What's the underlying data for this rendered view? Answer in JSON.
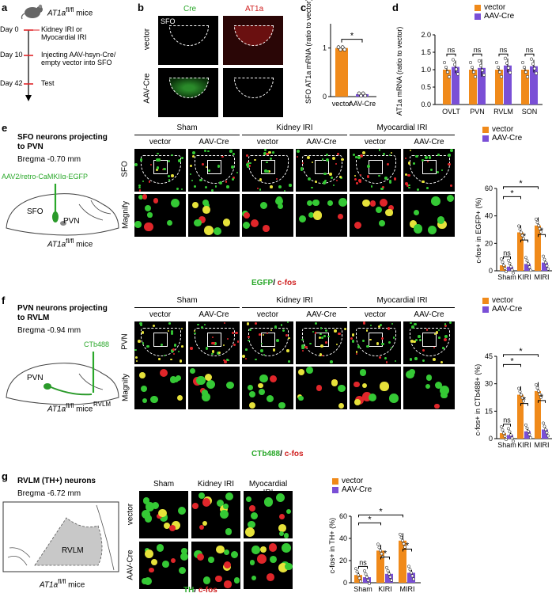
{
  "panel_a": {
    "letter": "a",
    "mouse_label": "AT1a",
    "mouse_sup": "fl/fl",
    "mouse_suffix": " mice",
    "steps": [
      {
        "day": "Day 0",
        "text": "Kidney IRI or Myocardial IRI"
      },
      {
        "day": "Day 10",
        "text": "Injecting AAV-hsyn-Cre/ empty vector into SFO"
      },
      {
        "day": "Day 42",
        "text": "Test"
      }
    ]
  },
  "panel_b": {
    "letter": "b",
    "col_cre": "Cre",
    "col_at1a": "AT1a",
    "region": "SFO",
    "row_vector": "vector",
    "row_aavcre": "AAV-Cre",
    "colors": {
      "cre": "#35c935",
      "at1a": "#e0262a"
    }
  },
  "panel_c": {
    "letter": "c",
    "chart_data": {
      "type": "bar",
      "ylabel": "SFO AT1a mRNA (ratio to vector)",
      "categories": [
        "vector",
        "AAV-Cre"
      ],
      "values": [
        1.0,
        0.05
      ],
      "errors": [
        0.02,
        0.03
      ],
      "ylim": [
        0,
        1.5
      ],
      "yticks": [
        "0",
        "1"
      ],
      "significance": "*",
      "colors": [
        "#f08a1a",
        "#7a4fd6"
      ]
    }
  },
  "panel_d": {
    "letter": "d",
    "chart_data": {
      "type": "bar",
      "ylabel": "AT1a mRNA (ratio to vector)",
      "ylim": [
        0,
        2.0
      ],
      "yticks": [
        "0.0",
        "0.5",
        "1.0",
        "1.5",
        "2.0"
      ],
      "categories": [
        "OVLT",
        "PVN",
        "RVLM",
        "SON"
      ],
      "series": [
        {
          "name": "vector",
          "values": [
            1.0,
            1.0,
            1.0,
            1.0
          ],
          "errors": [
            0.05,
            0.05,
            0.05,
            0.05
          ],
          "color": "#f08a1a"
        },
        {
          "name": "AAV-Cre",
          "values": [
            1.08,
            1.05,
            1.12,
            1.1
          ],
          "errors": [
            0.18,
            0.25,
            0.2,
            0.18
          ],
          "color": "#7a4fd6"
        }
      ],
      "significance": [
        "ns",
        "ns",
        "ns",
        "ns"
      ]
    }
  },
  "panel_e": {
    "letter": "e",
    "title_line1": "SFO neurons projecting",
    "title_line2": "to PVN",
    "bregma": "Bregma -0.70 mm",
    "virus": "AAV2/retro-CaMKIIα-EGFP",
    "brain_label1": "SFO",
    "brain_label2": "PVN",
    "groups": [
      "Sham",
      "Kidney IRI",
      "Myocardial IRI"
    ],
    "sub": [
      "vector",
      "AAV-Cre",
      "vector",
      "AAV-Cre",
      "vector",
      "AAV-Cre"
    ],
    "row1": "SFO",
    "row2": "Magnify",
    "stain_green": "EGFP",
    "stain_sep": "/ ",
    "stain_red": "c-fos",
    "chart_data": {
      "type": "bar",
      "ylabel": "c-fos+ in EGFP+ (%)",
      "ylim": [
        0,
        60
      ],
      "yticks": [
        "0",
        "20",
        "40",
        "60"
      ],
      "categories": [
        "Sham",
        "KIRI",
        "MIRI"
      ],
      "series": [
        {
          "name": "vector",
          "values": [
            4,
            28,
            33
          ],
          "color": "#f08a1a"
        },
        {
          "name": "AAV-Cre",
          "values": [
            3,
            5,
            6
          ],
          "color": "#7a4fd6"
        }
      ],
      "significance": [
        "ns",
        "*",
        "*",
        "*",
        "*"
      ]
    }
  },
  "panel_f": {
    "letter": "f",
    "title_line1": "PVN neurons projecting",
    "title_line2": "to RVLM",
    "bregma": "Bregma -0.94 mm",
    "tracer": "CTb488",
    "brain_label1": "PVN",
    "brain_label2": "RVLM",
    "groups": [
      "Sham",
      "Kidney IRI",
      "Myocardial IRI"
    ],
    "sub": [
      "vector",
      "AAV-Cre",
      "vector",
      "AAV-Cre",
      "vector",
      "AAV-Cre"
    ],
    "row1": "PVN",
    "row2": "Magnify",
    "stain_green": "CTb488",
    "stain_sep": "/ ",
    "stain_red": "c-fos",
    "chart_data": {
      "type": "bar",
      "ylabel": "c-fos+ in CTb488+ (%)",
      "ylim": [
        0,
        45
      ],
      "yticks": [
        "0",
        "15",
        "30",
        "45"
      ],
      "categories": [
        "Sham",
        "KIRI",
        "MIRI"
      ],
      "series": [
        {
          "name": "vector",
          "values": [
            3,
            24,
            26
          ],
          "color": "#f08a1a"
        },
        {
          "name": "AAV-Cre",
          "values": [
            2,
            4,
            5
          ],
          "color": "#7a4fd6"
        }
      ],
      "significance": [
        "ns",
        "*",
        "*",
        "*",
        "*"
      ]
    }
  },
  "panel_g": {
    "letter": "g",
    "title": "RVLM (TH+) neurons",
    "bregma": "Bregma -6.72 mm",
    "brain_label": "RVLM",
    "groups": [
      "Sham",
      "Kidney IRI",
      "Myocardial IRI"
    ],
    "rows": [
      "vector",
      "AAV-Cre"
    ],
    "stain_green": "TH",
    "stain_sep": "/ ",
    "stain_red": "c-fos",
    "chart_data": {
      "type": "bar",
      "ylabel": "c-fos+ in TH+ (%)",
      "ylim": [
        0,
        60
      ],
      "yticks": [
        "0",
        "20",
        "40",
        "60"
      ],
      "categories": [
        "Sham",
        "KIRI",
        "MIRI"
      ],
      "series": [
        {
          "name": "vector",
          "values": [
            7,
            29,
            38
          ],
          "color": "#f08a1a"
        },
        {
          "name": "AAV-Cre",
          "values": [
            5,
            8,
            9
          ],
          "color": "#7a4fd6"
        }
      ],
      "significance": [
        "ns",
        "*",
        "*",
        "*",
        "*"
      ]
    }
  },
  "mouse_suffix": "AT1a",
  "mouse_sup": "fl/fl",
  "mouse_tail": " mice"
}
